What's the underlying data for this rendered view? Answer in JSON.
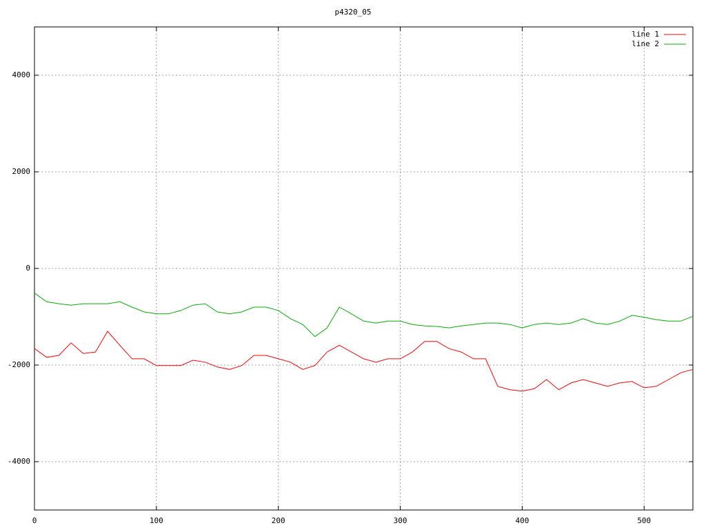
{
  "chart_data": {
    "type": "line",
    "title": "p4320_05",
    "x": [
      0,
      10,
      20,
      30,
      40,
      50,
      60,
      70,
      80,
      90,
      100,
      110,
      120,
      130,
      140,
      150,
      160,
      170,
      180,
      190,
      200,
      210,
      220,
      230,
      240,
      250,
      260,
      270,
      280,
      290,
      300,
      310,
      320,
      330,
      340,
      350,
      360,
      370,
      380,
      390,
      400,
      410,
      420,
      430,
      440,
      450,
      460,
      470,
      480,
      490,
      500,
      510,
      520,
      530,
      540
    ],
    "series": [
      {
        "name": "line 1",
        "color": "#ff0000",
        "values": [
          -1657,
          -1840,
          -1800,
          -1540,
          -1760,
          -1730,
          -1300,
          -1590,
          -1870,
          -1870,
          -2010,
          -2010,
          -2010,
          -1900,
          -1940,
          -2040,
          -2090,
          -2010,
          -1800,
          -1800,
          -1870,
          -1940,
          -2090,
          -2010,
          -1730,
          -1590,
          -1730,
          -1870,
          -1940,
          -1870,
          -1870,
          -1730,
          -1510,
          -1510,
          -1660,
          -1730,
          -1870,
          -1870,
          -2440,
          -2510,
          -2540,
          -2490,
          -2300,
          -2510,
          -2370,
          -2300,
          -2370,
          -2440,
          -2370,
          -2340,
          -2470,
          -2440,
          -2300,
          -2160,
          -2090
        ]
      },
      {
        "name": "line 2",
        "color": "#00b000",
        "values": [
          -510,
          -690,
          -730,
          -760,
          -730,
          -730,
          -730,
          -690,
          -800,
          -900,
          -940,
          -940,
          -870,
          -760,
          -730,
          -900,
          -940,
          -900,
          -800,
          -800,
          -870,
          -1040,
          -1160,
          -1410,
          -1230,
          -800,
          -940,
          -1090,
          -1130,
          -1090,
          -1090,
          -1160,
          -1190,
          -1200,
          -1230,
          -1190,
          -1160,
          -1130,
          -1130,
          -1160,
          -1230,
          -1160,
          -1130,
          -1160,
          -1130,
          -1040,
          -1130,
          -1160,
          -1090,
          -970,
          -1010,
          -1060,
          -1090,
          -1090,
          -990
        ]
      }
    ],
    "xlim": [
      0,
      540
    ],
    "xticks": [
      0,
      100,
      200,
      300,
      400,
      500
    ],
    "ylim": [
      -5000,
      5000
    ],
    "yticks": [
      -4000,
      -2000,
      0,
      2000,
      4000
    ],
    "grid": true,
    "legend": "top-right"
  }
}
